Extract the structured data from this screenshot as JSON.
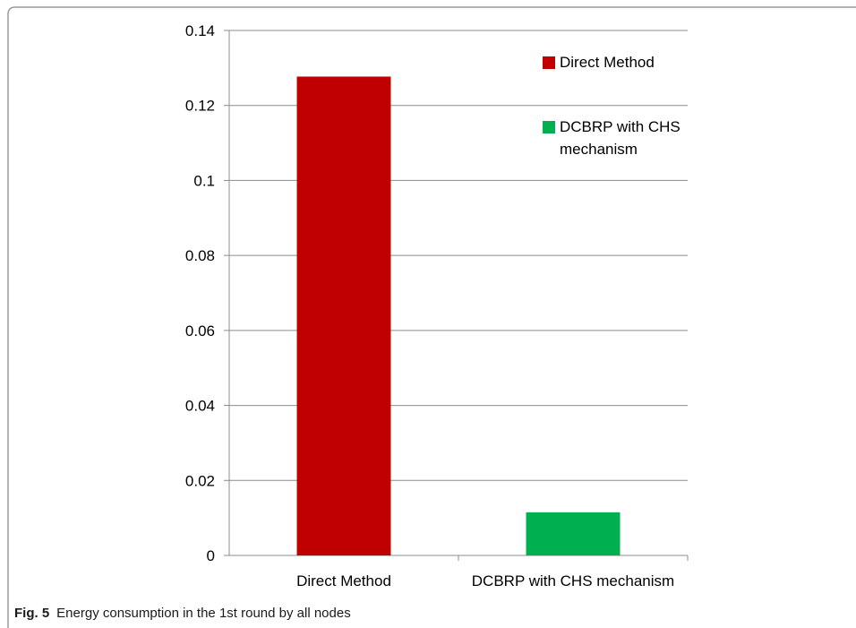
{
  "caption": {
    "label": "Fig. 5",
    "text": "Energy consumption in the 1st round by all nodes"
  },
  "chart_data": {
    "type": "bar",
    "title": "",
    "xlabel": "",
    "ylabel": "",
    "categories": [
      "Direct Method",
      "DCBRP with CHS mechanism"
    ],
    "values": [
      0.1277,
      0.0115
    ],
    "colors": [
      "#c00000",
      "#00b050"
    ],
    "ylim": [
      0,
      0.14
    ],
    "yticks": [
      0,
      0.02,
      0.04,
      0.06,
      0.08,
      0.1,
      0.12,
      0.14
    ],
    "ytick_labels": [
      "0",
      "0.02",
      "0.04",
      "0.06",
      "0.08",
      "0.1",
      "0.12",
      "0.14"
    ],
    "grid": true,
    "legend": {
      "placement": "top-right",
      "entries": [
        {
          "lines": [
            "Direct Method"
          ],
          "color": "#c00000"
        },
        {
          "lines": [
            "DCBRP with CHS",
            "mechanism"
          ],
          "color": "#00b050"
        }
      ]
    }
  }
}
